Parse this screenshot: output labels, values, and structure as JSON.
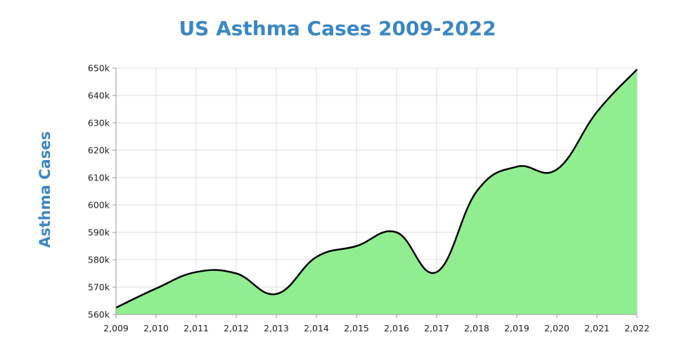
{
  "chart_data": {
    "type": "area",
    "title": "US Asthma Cases 2009-2022",
    "xlabel": "",
    "ylabel": "Asthma Cases",
    "x": [
      2009,
      2010,
      2011,
      2012,
      2013,
      2014,
      2015,
      2016,
      2017,
      2018,
      2019,
      2020,
      2021,
      2022
    ],
    "x_tick_labels": [
      "2,009",
      "2,010",
      "2,011",
      "2,012",
      "2,013",
      "2,014",
      "2,015",
      "2,016",
      "2,017",
      "2,018",
      "2,019",
      "2,020",
      "2,021",
      "2,022"
    ],
    "series": [
      {
        "values": [
          562500,
          569500,
          575500,
          575000,
          567500,
          581000,
          585000,
          590000,
          575500,
          605000,
          614000,
          613000,
          634000,
          649500
        ]
      }
    ],
    "ylim": [
      560000,
      650000
    ],
    "y_ticks": [
      560000,
      570000,
      580000,
      590000,
      600000,
      610000,
      620000,
      630000,
      640000,
      650000
    ],
    "y_tick_labels": [
      "560k",
      "570k",
      "580k",
      "590k",
      "600k",
      "610k",
      "620k",
      "630k",
      "640k",
      "650k"
    ],
    "grid": true,
    "fill_color": "#90ee90",
    "line_color": "#000000",
    "title_color": "#3a87c5"
  }
}
